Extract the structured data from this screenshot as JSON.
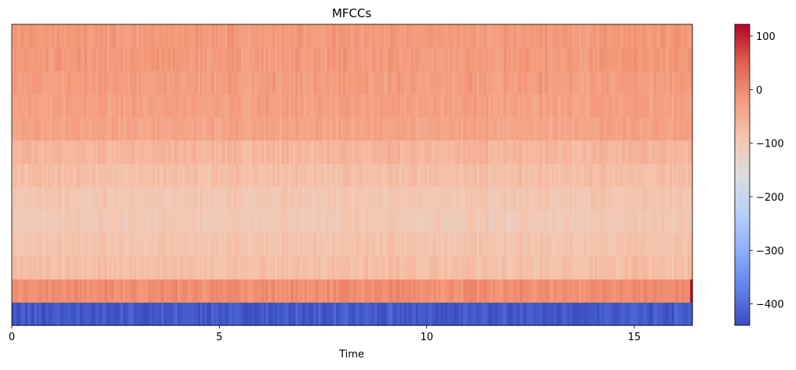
{
  "chart_data": {
    "type": "heatmap",
    "title": "MFCCs",
    "xlabel": "Time",
    "ylabel": "",
    "xlim": [
      0,
      16.4
    ],
    "x_ticks": [
      0,
      5,
      10,
      15
    ],
    "x_tick_labels": [
      "0",
      "5",
      "10",
      "15"
    ],
    "n_coefficients": 13,
    "coefficient_mean_values": [
      -425,
      -5,
      -80,
      -90,
      -100,
      -95,
      -80,
      -65,
      -35,
      -30,
      -25,
      -20,
      -20
    ],
    "colorbar": {
      "colormap": "coolwarm",
      "vmin": -440,
      "vmax": 122,
      "ticks": [
        100,
        0,
        -100,
        -200,
        -300,
        -400
      ],
      "tick_labels": [
        "100",
        "0",
        "−100",
        "−200",
        "−300",
        "−400"
      ]
    },
    "grid": false,
    "legend": "none"
  }
}
